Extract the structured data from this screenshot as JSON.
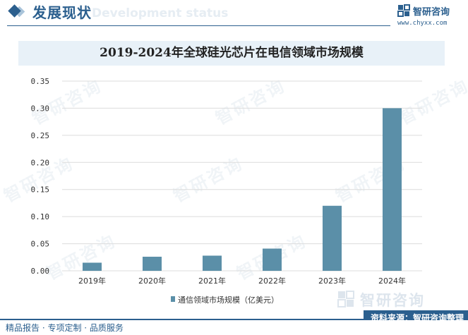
{
  "header": {
    "title": "发展现状",
    "subtitle": "Development status"
  },
  "brand": {
    "name": "智研咨询",
    "url": "www.chyxx.com"
  },
  "watermark": {
    "text": "智研咨询"
  },
  "chart_data": {
    "type": "bar",
    "title": "2019-2024年全球硅光芯片在电信领域市场规模",
    "categories": [
      "2019年",
      "2020年",
      "2021年",
      "2022年",
      "2023年",
      "2024年"
    ],
    "series": [
      {
        "name": "通信领域市场规模（亿美元）",
        "values": [
          0.015,
          0.026,
          0.028,
          0.041,
          0.12,
          0.3
        ]
      }
    ],
    "ylim": [
      0,
      0.35
    ],
    "yticks": [
      "0.00",
      "0.05",
      "0.10",
      "0.15",
      "0.20",
      "0.25",
      "0.30",
      "0.35"
    ],
    "grid": true,
    "legend": "bottom",
    "bar_color": "#5b8fa8",
    "grid_color": "#dcdcdc"
  },
  "footer": {
    "left": "精品报告 · 专项定制 · 品质服务",
    "source": "资料来源：智研咨询整理"
  },
  "colors": {
    "brand": "#2b5f8e",
    "title_band": "#e8f1f8"
  }
}
